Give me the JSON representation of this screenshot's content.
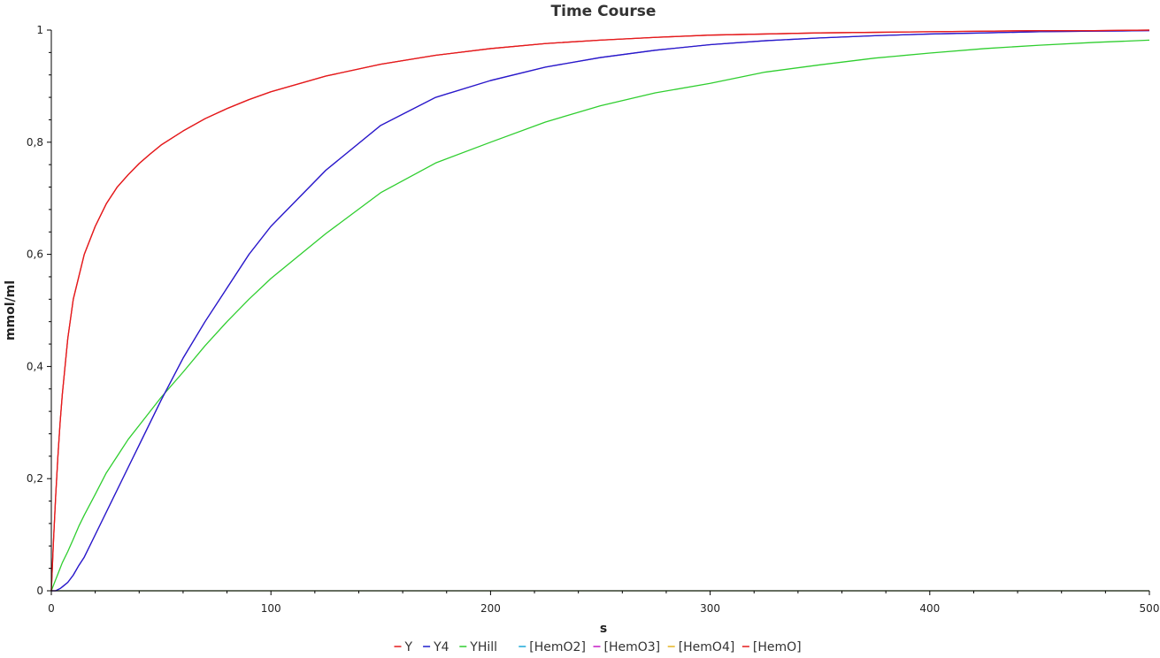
{
  "chart_data": {
    "type": "line",
    "title": "Time Course",
    "xlabel": "s",
    "ylabel": "mmol/ml",
    "xlim": [
      0,
      500
    ],
    "ylim": [
      0,
      1
    ],
    "x_ticks": [
      0,
      100,
      200,
      300,
      400,
      500
    ],
    "x_tick_labels": [
      "0",
      "100",
      "200",
      "300",
      "400",
      "500"
    ],
    "y_ticks": [
      0,
      0.2,
      0.4,
      0.6,
      0.8,
      1
    ],
    "y_tick_labels": [
      "0",
      "0,2",
      "0,4",
      "0,6",
      "0,8",
      "1"
    ],
    "grid": false,
    "legend_position": "bottom",
    "x": [
      0,
      1,
      2,
      3,
      4,
      5,
      7.5,
      10,
      12.5,
      15,
      20,
      25,
      30,
      35,
      40,
      45,
      50,
      60,
      70,
      80,
      90,
      100,
      125,
      150,
      175,
      200,
      225,
      250,
      275,
      300,
      325,
      350,
      375,
      400,
      425,
      450,
      475,
      500
    ],
    "series": [
      {
        "name": "Y",
        "color": "#e41a1c",
        "values": [
          0,
          0.09,
          0.17,
          0.24,
          0.3,
          0.35,
          0.45,
          0.52,
          0.56,
          0.6,
          0.65,
          0.69,
          0.72,
          0.742,
          0.762,
          0.779,
          0.795,
          0.82,
          0.842,
          0.86,
          0.876,
          0.89,
          0.918,
          0.939,
          0.955,
          0.967,
          0.976,
          0.982,
          0.987,
          0.991,
          0.993,
          0.995,
          0.996,
          0.997,
          0.998,
          0.999,
          0.999,
          1.0
        ]
      },
      {
        "name": "Y4",
        "color": "#1f1fcc",
        "values": [
          0,
          0,
          0,
          0.002,
          0.004,
          0.007,
          0.015,
          0.028,
          0.045,
          0.06,
          0.1,
          0.14,
          0.18,
          0.22,
          0.26,
          0.3,
          0.34,
          0.415,
          0.48,
          0.54,
          0.6,
          0.65,
          0.75,
          0.83,
          0.88,
          0.91,
          0.934,
          0.951,
          0.964,
          0.974,
          0.981,
          0.986,
          0.99,
          0.993,
          0.995,
          0.997,
          0.998,
          0.999
        ]
      },
      {
        "name": "YHill",
        "color": "#2fce2f",
        "values": [
          0,
          0.01,
          0.02,
          0.03,
          0.04,
          0.05,
          0.07,
          0.092,
          0.115,
          0.135,
          0.172,
          0.21,
          0.24,
          0.27,
          0.295,
          0.32,
          0.345,
          0.39,
          0.437,
          0.48,
          0.52,
          0.557,
          0.637,
          0.71,
          0.763,
          0.8,
          0.836,
          0.865,
          0.888,
          0.905,
          0.925,
          0.938,
          0.95,
          0.959,
          0.967,
          0.973,
          0.978,
          0.982
        ]
      },
      {
        "name": "[HemO2]",
        "color": "#1aa8d8",
        "values": [
          0,
          0,
          0,
          0,
          0,
          0,
          0,
          0,
          0,
          0,
          0,
          0,
          0,
          0,
          0,
          0,
          0,
          0,
          0,
          0,
          0,
          0,
          0,
          0,
          0,
          0,
          0,
          0,
          0,
          0,
          0,
          0,
          0,
          0,
          0,
          0,
          0,
          0
        ]
      },
      {
        "name": "[HemO3]",
        "color": "#c61bc6",
        "values": [
          0,
          0,
          0,
          0.002,
          0.004,
          0.007,
          0.015,
          0.028,
          0.045,
          0.06,
          0.1,
          0.14,
          0.18,
          0.22,
          0.26,
          0.3,
          0.34,
          0.415,
          0.48,
          0.54,
          0.6,
          0.65,
          0.75,
          0.83,
          0.88,
          0.91,
          0.934,
          0.951,
          0.964,
          0.974,
          0.981,
          0.986,
          0.99,
          0.993,
          0.995,
          0.997,
          0.998,
          0.999
        ]
      },
      {
        "name": "[HemO4]",
        "color": "#e6b422",
        "values": [
          0,
          0,
          0,
          0,
          0,
          0,
          0,
          0,
          0,
          0,
          0,
          0,
          0,
          0,
          0,
          0,
          0,
          0,
          0,
          0,
          0,
          0,
          0,
          0,
          0,
          0,
          0,
          0,
          0,
          0,
          0,
          0,
          0,
          0,
          0,
          0,
          0,
          0
        ]
      },
      {
        "name": "[HemO]",
        "color": "#e41a1c",
        "values": [
          0,
          0.09,
          0.17,
          0.24,
          0.3,
          0.35,
          0.45,
          0.52,
          0.56,
          0.6,
          0.65,
          0.69,
          0.72,
          0.742,
          0.762,
          0.779,
          0.795,
          0.82,
          0.842,
          0.86,
          0.876,
          0.89,
          0.918,
          0.939,
          0.955,
          0.967,
          0.976,
          0.982,
          0.987,
          0.991,
          0.993,
          0.995,
          0.996,
          0.997,
          0.998,
          0.999,
          0.999,
          1.0
        ]
      }
    ],
    "draw_order": [
      3,
      5,
      2,
      4,
      1,
      6,
      0
    ]
  }
}
